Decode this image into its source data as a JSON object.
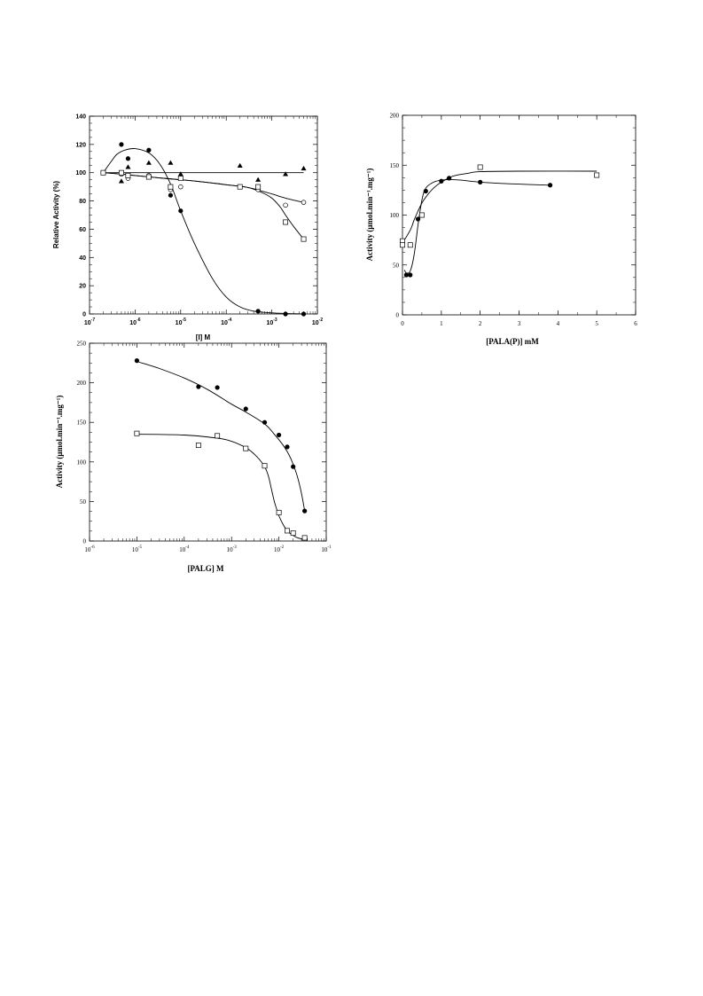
{
  "chart_data": [
    {
      "id": "chart-inhibitor",
      "type": "scatter",
      "title": "",
      "xlabel": "[I] M",
      "ylabel": "Relative Activity (%)",
      "xscale": "log",
      "xlim": [
        1e-07,
        0.01
      ],
      "ylim": [
        0,
        140
      ],
      "xticks": [
        1e-07,
        1e-06,
        1e-05,
        0.0001,
        0.001,
        0.01
      ],
      "xtick_labels": [
        [
          "10",
          "-7"
        ],
        [
          "10",
          "-6"
        ],
        [
          "10",
          "-5"
        ],
        [
          "10",
          "-4"
        ],
        [
          "10",
          "-3"
        ],
        [
          "10",
          "-2"
        ]
      ],
      "yticks": [
        0,
        20,
        40,
        60,
        80,
        100,
        120,
        140
      ],
      "ytick_labels": [
        "0",
        "20",
        "40",
        "60",
        "80",
        "100",
        "120",
        "140"
      ],
      "grid": false,
      "series": [
        {
          "marker": "circle-filled",
          "x": [
            2e-07,
            5e-07,
            7e-07,
            2e-06,
            6e-06,
            1e-05,
            0.0005,
            0.002,
            0.005
          ],
          "y": [
            100,
            120,
            110,
            116,
            84,
            73,
            2,
            0,
            0
          ],
          "curve_x": [
            2e-07,
            3e-07,
            4e-07,
            6e-07,
            1e-06,
            2e-06,
            3.5e-06,
            6e-06,
            1e-05,
            2e-05,
            5e-05,
            0.0001,
            0.0002,
            0.0004,
            0.0008,
            0.0015,
            0.003,
            0.005
          ],
          "curve_y": [
            100,
            108,
            113,
            116,
            117,
            114,
            106,
            92,
            73,
            50,
            25,
            12,
            5,
            2,
            1,
            0.5,
            0.2,
            0
          ]
        },
        {
          "marker": "circle-open",
          "x": [
            2e-07,
            5e-07,
            7e-07,
            2e-06,
            6e-06,
            1e-05,
            0.0002,
            0.0005,
            0.002,
            0.005
          ],
          "y": [
            100,
            99,
            96,
            98,
            88,
            90,
            90,
            88,
            77,
            79
          ],
          "curve_x": [
            2e-07,
            5e-07,
            1e-06,
            3e-06,
            1e-05,
            3e-05,
            0.0001,
            0.0003,
            0.0006,
            0.001,
            0.002,
            0.005
          ],
          "curve_y": [
            100,
            99,
            98,
            96.5,
            95,
            93.5,
            91.5,
            89.5,
            87,
            85,
            82,
            79
          ]
        },
        {
          "marker": "triangle-filled",
          "x": [
            2e-07,
            5e-07,
            7e-07,
            2e-06,
            6e-06,
            1e-05,
            0.0002,
            0.0005,
            0.002,
            0.005
          ],
          "y": [
            100,
            94,
            104,
            107,
            107,
            99,
            105,
            95,
            99,
            103
          ],
          "curve_x": [
            2e-07,
            0.005
          ],
          "curve_y": [
            100,
            100
          ]
        },
        {
          "marker": "square-open",
          "x": [
            2e-07,
            5e-07,
            7e-07,
            2e-06,
            6e-06,
            1e-05,
            0.0002,
            0.0005,
            0.002,
            0.005
          ],
          "y": [
            100,
            100,
            98,
            97,
            90,
            96,
            90,
            90,
            65,
            53
          ],
          "curve_x": [
            2e-07,
            5e-07,
            1e-06,
            3e-06,
            1e-05,
            3e-05,
            0.0001,
            0.0003,
            0.0006,
            0.001,
            0.0015,
            0.002,
            0.003,
            0.005
          ],
          "curve_y": [
            100,
            99,
            98,
            96.5,
            95,
            93.5,
            91.5,
            89.5,
            86,
            82,
            76,
            70,
            62,
            53
          ]
        }
      ]
    },
    {
      "id": "chart-pala",
      "type": "scatter",
      "title": "",
      "xlabel": "[PALA(P)] mM",
      "ylabel": "Activity (μmol.min⁻¹.mg⁻¹)",
      "xscale": "linear",
      "xlim": [
        0,
        6
      ],
      "ylim": [
        0,
        200
      ],
      "xticks": [
        0,
        1,
        2,
        3,
        4,
        5,
        6
      ],
      "xtick_labels": [
        "0",
        "1",
        "2",
        "3",
        "4",
        "5",
        "6"
      ],
      "yticks": [
        0,
        50,
        100,
        150,
        200
      ],
      "ytick_labels": [
        "0",
        "50",
        "100",
        "150",
        "200"
      ],
      "grid": false,
      "series": [
        {
          "marker": "circle-filled",
          "x": [
            0,
            0.1,
            0.2,
            0.4,
            0.6,
            1.0,
            1.2,
            2.0,
            3.8
          ],
          "y": [
            72,
            40,
            40,
            96,
            124,
            134,
            137,
            133,
            130
          ],
          "curve_x": [
            0.05,
            0.1,
            0.2,
            0.3,
            0.4,
            0.5,
            0.6,
            0.8,
            1.0,
            1.2,
            1.5,
            2.0,
            3.0,
            3.8
          ],
          "curve_y": [
            45,
            42,
            44,
            60,
            90,
            115,
            127,
            133,
            135,
            135.5,
            135,
            133,
            131,
            130
          ]
        },
        {
          "marker": "square-open",
          "x": [
            0,
            0,
            0.2,
            0.5,
            2.0,
            5.0
          ],
          "y": [
            74,
            70,
            70,
            100,
            148,
            140
          ],
          "curve_x": [
            0,
            0.2,
            0.3,
            0.4,
            0.5,
            0.6,
            0.8,
            1.0,
            1.3,
            1.7,
            2.0,
            3.0,
            5.0
          ],
          "curve_y": [
            72,
            85,
            95,
            104,
            112,
            118,
            127,
            133,
            139,
            142,
            143.5,
            144,
            144
          ]
        }
      ]
    },
    {
      "id": "chart-palg",
      "type": "scatter",
      "title": "",
      "xlabel": "[PALG] M",
      "ylabel": "Activity (μmol.min⁻¹.mg⁻¹)",
      "xscale": "log",
      "xlim": [
        1e-06,
        0.1
      ],
      "ylim": [
        0,
        250
      ],
      "xticks": [
        1e-06,
        1e-05,
        0.0001,
        0.001,
        0.01,
        0.1
      ],
      "xtick_labels": [
        [
          "10",
          "-6"
        ],
        [
          "10",
          "-5"
        ],
        [
          "10",
          "-4"
        ],
        [
          "10",
          "-3"
        ],
        [
          "10",
          "-2"
        ],
        [
          "10",
          "-1"
        ]
      ],
      "yticks": [
        0,
        50,
        100,
        150,
        200,
        250
      ],
      "ytick_labels": [
        "0",
        "50",
        "100",
        "150",
        "200",
        "250"
      ],
      "grid": false,
      "series": [
        {
          "marker": "circle-filled",
          "x": [
            1e-05,
            0.0002,
            0.0005,
            0.002,
            0.005,
            0.01,
            0.015,
            0.02,
            0.035
          ],
          "y": [
            228,
            195,
            194,
            167,
            150,
            134,
            119,
            94,
            38
          ],
          "curve_x": [
            1e-05,
            3e-05,
            0.0001,
            0.0003,
            0.001,
            0.002,
            0.005,
            0.008,
            0.012,
            0.016,
            0.02,
            0.025,
            0.03,
            0.035
          ],
          "curve_y": [
            227,
            218,
            206,
            192,
            173,
            163,
            148,
            135,
            122,
            110,
            97,
            80,
            60,
            38
          ]
        },
        {
          "marker": "square-open",
          "x": [
            1e-05,
            0.0002,
            0.0005,
            0.002,
            0.005,
            0.01,
            0.015,
            0.02,
            0.035
          ],
          "y": [
            136,
            121,
            133,
            117,
            95,
            36,
            13,
            10,
            4
          ],
          "curve_x": [
            1e-05,
            0.0001,
            0.0005,
            0.001,
            0.002,
            0.003,
            0.004,
            0.005,
            0.006,
            0.007,
            0.008,
            0.009,
            0.01,
            0.012,
            0.015,
            0.02,
            0.025,
            0.035
          ],
          "curve_y": [
            135,
            134,
            130,
            126,
            118,
            110,
            102,
            94,
            82,
            65,
            50,
            40,
            32,
            22,
            13,
            7,
            4,
            2
          ]
        }
      ]
    }
  ]
}
